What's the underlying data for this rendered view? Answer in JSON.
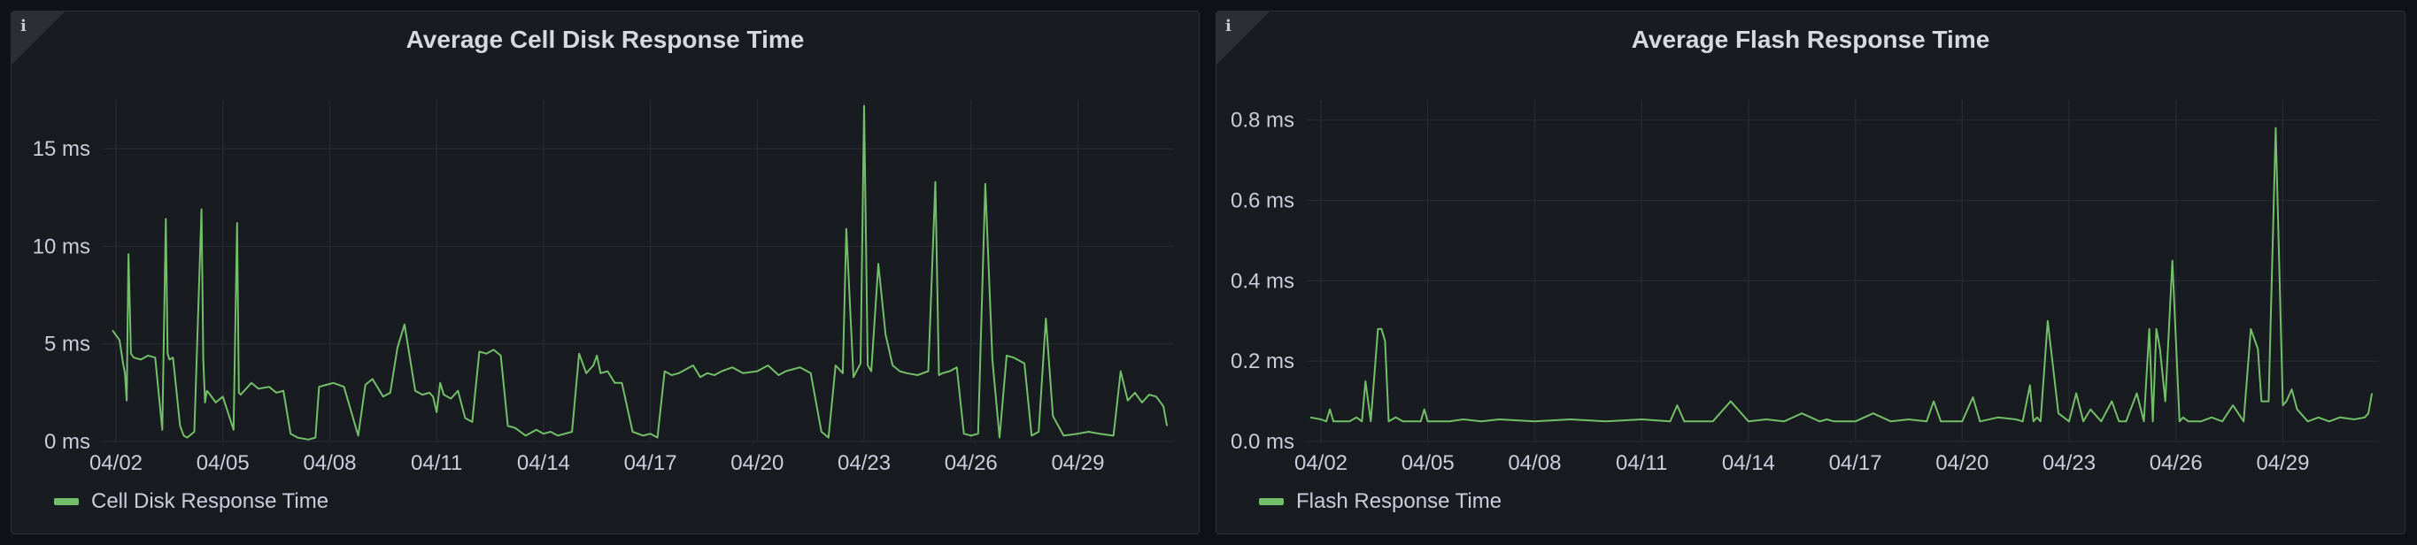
{
  "panels": [
    {
      "title": "Average Cell Disk Response Time",
      "info_icon": "info-icon",
      "legend": "Cell Disk Response Time",
      "color": "#73bf69"
    },
    {
      "title": "Average Flash Response Time",
      "info_icon": "info-icon",
      "legend": "Flash Response Time",
      "color": "#73bf69"
    }
  ],
  "chart_data": [
    {
      "type": "line",
      "title": "Average Cell Disk Response Time",
      "xlabel": "",
      "ylabel": "",
      "x_tick_labels": [
        "04/02",
        "04/05",
        "04/08",
        "04/11",
        "04/14",
        "04/17",
        "04/20",
        "04/23",
        "04/26",
        "04/29"
      ],
      "xlim": [
        0,
        29.5
      ],
      "ylim": [
        0,
        17.5
      ],
      "y_ticks": [
        0,
        5,
        10,
        15
      ],
      "y_tick_labels": [
        "0 ms",
        "5 ms",
        "10 ms",
        "15 ms"
      ],
      "grid": true,
      "legend_position": "bottom-left",
      "series": [
        {
          "name": "Cell Disk Response Time",
          "x": [
            -0.1,
            0.1,
            0.2,
            0.25,
            0.3,
            0.35,
            0.42,
            0.5,
            0.7,
            0.9,
            1.1,
            1.3,
            1.4,
            1.45,
            1.5,
            1.6,
            1.8,
            1.9,
            2.0,
            2.2,
            2.4,
            2.45,
            2.5,
            2.55,
            2.6,
            2.8,
            3.0,
            3.3,
            3.4,
            3.45,
            3.5,
            3.6,
            3.8,
            4.0,
            4.3,
            4.5,
            4.7,
            4.9,
            5.1,
            5.4,
            5.6,
            5.7,
            5.9,
            6.1,
            6.4,
            6.8,
            7.0,
            7.2,
            7.5,
            7.7,
            7.9,
            8.1,
            8.4,
            8.6,
            8.8,
            8.9,
            9.0,
            9.1,
            9.2,
            9.4,
            9.6,
            9.8,
            10.0,
            10.2,
            10.4,
            10.6,
            10.8,
            11.0,
            11.2,
            11.5,
            11.8,
            12.0,
            12.2,
            12.4,
            12.8,
            13.0,
            13.2,
            13.4,
            13.5,
            13.6,
            13.8,
            14.0,
            14.2,
            14.5,
            14.8,
            15.0,
            15.2,
            15.4,
            15.6,
            15.8,
            16.0,
            16.2,
            16.4,
            16.6,
            16.8,
            17.0,
            17.3,
            17.6,
            18.0,
            18.3,
            18.6,
            18.8,
            19.0,
            19.2,
            19.5,
            19.8,
            20.0,
            20.2,
            20.4,
            20.5,
            20.7,
            20.9,
            21.0,
            21.1,
            21.2,
            21.4,
            21.6,
            21.8,
            22.0,
            22.2,
            22.5,
            22.8,
            23.0,
            23.1,
            23.2,
            23.4,
            23.6,
            23.8,
            24.0,
            24.2,
            24.4,
            24.6,
            24.8,
            25.0,
            25.2,
            25.5,
            25.7,
            25.9,
            26.1,
            26.3,
            26.6,
            27.0,
            27.3,
            27.6,
            28.0,
            28.2,
            28.4,
            28.6,
            28.8,
            29.0,
            29.2,
            29.4,
            29.5
          ],
          "values": [
            5.7,
            5.2,
            4.0,
            3.5,
            2.1,
            9.6,
            4.5,
            4.3,
            4.2,
            4.4,
            4.3,
            0.6,
            11.4,
            4.5,
            4.2,
            4.3,
            0.8,
            0.3,
            0.2,
            0.5,
            11.9,
            4.2,
            2.0,
            2.6,
            2.5,
            2.0,
            2.3,
            0.6,
            11.2,
            2.5,
            2.4,
            2.6,
            3.0,
            2.7,
            2.8,
            2.5,
            2.6,
            0.4,
            0.2,
            0.1,
            0.2,
            2.8,
            2.9,
            3.0,
            2.8,
            0.3,
            2.9,
            3.2,
            2.3,
            2.5,
            4.8,
            6.0,
            2.6,
            2.4,
            2.5,
            2.3,
            1.5,
            3.0,
            2.4,
            2.2,
            2.6,
            1.2,
            1.0,
            4.6,
            4.5,
            4.7,
            4.4,
            0.8,
            0.7,
            0.3,
            0.6,
            0.4,
            0.5,
            0.3,
            0.5,
            4.5,
            3.5,
            3.9,
            4.4,
            3.5,
            3.6,
            3.0,
            3.0,
            0.5,
            0.3,
            0.4,
            0.2,
            3.6,
            3.4,
            3.5,
            3.7,
            3.9,
            3.3,
            3.5,
            3.4,
            3.6,
            3.8,
            3.5,
            3.6,
            3.9,
            3.4,
            3.6,
            3.7,
            3.8,
            3.5,
            0.5,
            0.2,
            3.9,
            3.5,
            10.9,
            3.3,
            4.0,
            17.2,
            3.9,
            3.6,
            9.1,
            5.5,
            3.9,
            3.6,
            3.5,
            3.4,
            3.6,
            13.3,
            3.4,
            3.5,
            3.6,
            3.8,
            0.4,
            0.3,
            0.4,
            13.2,
            4.2,
            0.2,
            4.4,
            4.3,
            4.0,
            0.3,
            0.5,
            6.3,
            1.3,
            0.3,
            0.4,
            0.5,
            0.4,
            0.3,
            3.6,
            2.1,
            2.5,
            2.0,
            2.4,
            2.3,
            1.8,
            0.8
          ]
        }
      ]
    },
    {
      "type": "line",
      "title": "Average Flash Response Time",
      "xlabel": "",
      "ylabel": "",
      "x_tick_labels": [
        "04/02",
        "04/05",
        "04/08",
        "04/11",
        "04/14",
        "04/17",
        "04/20",
        "04/23",
        "04/26",
        "04/29"
      ],
      "xlim": [
        0,
        29.5
      ],
      "ylim": [
        0,
        0.85
      ],
      "y_ticks": [
        0,
        0.2,
        0.4,
        0.6,
        0.8
      ],
      "y_tick_labels": [
        "0.0 ms",
        "0.2 ms",
        "0.4 ms",
        "0.6 ms",
        "0.8 ms"
      ],
      "grid": true,
      "legend_position": "bottom-left",
      "series": [
        {
          "name": "Flash Response Time",
          "x": [
            -0.3,
            0.0,
            0.15,
            0.25,
            0.35,
            0.5,
            0.8,
            1.0,
            1.15,
            1.25,
            1.4,
            1.6,
            1.7,
            1.8,
            1.9,
            2.1,
            2.3,
            2.6,
            2.8,
            2.9,
            3.0,
            3.2,
            3.6,
            4.0,
            4.5,
            5.0,
            6.0,
            7.0,
            8.0,
            9.0,
            9.8,
            10.0,
            10.2,
            11.0,
            11.5,
            12.0,
            12.5,
            13.0,
            13.5,
            14.0,
            14.2,
            14.4,
            15.0,
            15.5,
            16.0,
            16.5,
            17.0,
            17.2,
            17.4,
            18.0,
            18.3,
            18.5,
            19.0,
            19.5,
            19.7,
            19.9,
            20.0,
            20.1,
            20.2,
            20.4,
            20.7,
            21.0,
            21.2,
            21.4,
            21.6,
            21.9,
            22.2,
            22.4,
            22.6,
            22.9,
            23.1,
            23.25,
            23.35,
            23.45,
            23.55,
            23.7,
            23.9,
            24.1,
            24.2,
            24.35,
            24.5,
            24.7,
            25.0,
            25.3,
            25.6,
            25.9,
            26.1,
            26.3,
            26.4,
            26.6,
            26.8,
            27.0,
            27.1,
            27.25,
            27.4,
            27.7,
            28.0,
            28.3,
            28.6,
            29.0,
            29.3,
            29.4,
            29.5
          ],
          "values": [
            0.06,
            0.055,
            0.05,
            0.08,
            0.05,
            0.05,
            0.05,
            0.06,
            0.05,
            0.15,
            0.05,
            0.28,
            0.28,
            0.25,
            0.05,
            0.06,
            0.05,
            0.05,
            0.05,
            0.08,
            0.05,
            0.05,
            0.05,
            0.055,
            0.05,
            0.055,
            0.05,
            0.055,
            0.05,
            0.055,
            0.05,
            0.09,
            0.05,
            0.05,
            0.1,
            0.05,
            0.055,
            0.05,
            0.07,
            0.05,
            0.055,
            0.05,
            0.05,
            0.07,
            0.05,
            0.055,
            0.05,
            0.1,
            0.05,
            0.05,
            0.11,
            0.05,
            0.06,
            0.055,
            0.05,
            0.14,
            0.05,
            0.06,
            0.05,
            0.3,
            0.07,
            0.05,
            0.12,
            0.05,
            0.08,
            0.05,
            0.1,
            0.05,
            0.05,
            0.12,
            0.05,
            0.28,
            0.05,
            0.28,
            0.23,
            0.1,
            0.45,
            0.05,
            0.06,
            0.05,
            0.05,
            0.05,
            0.06,
            0.05,
            0.09,
            0.05,
            0.28,
            0.23,
            0.1,
            0.1,
            0.78,
            0.09,
            0.1,
            0.13,
            0.08,
            0.05,
            0.06,
            0.05,
            0.06,
            0.055,
            0.06,
            0.07,
            0.12
          ]
        }
      ]
    }
  ]
}
